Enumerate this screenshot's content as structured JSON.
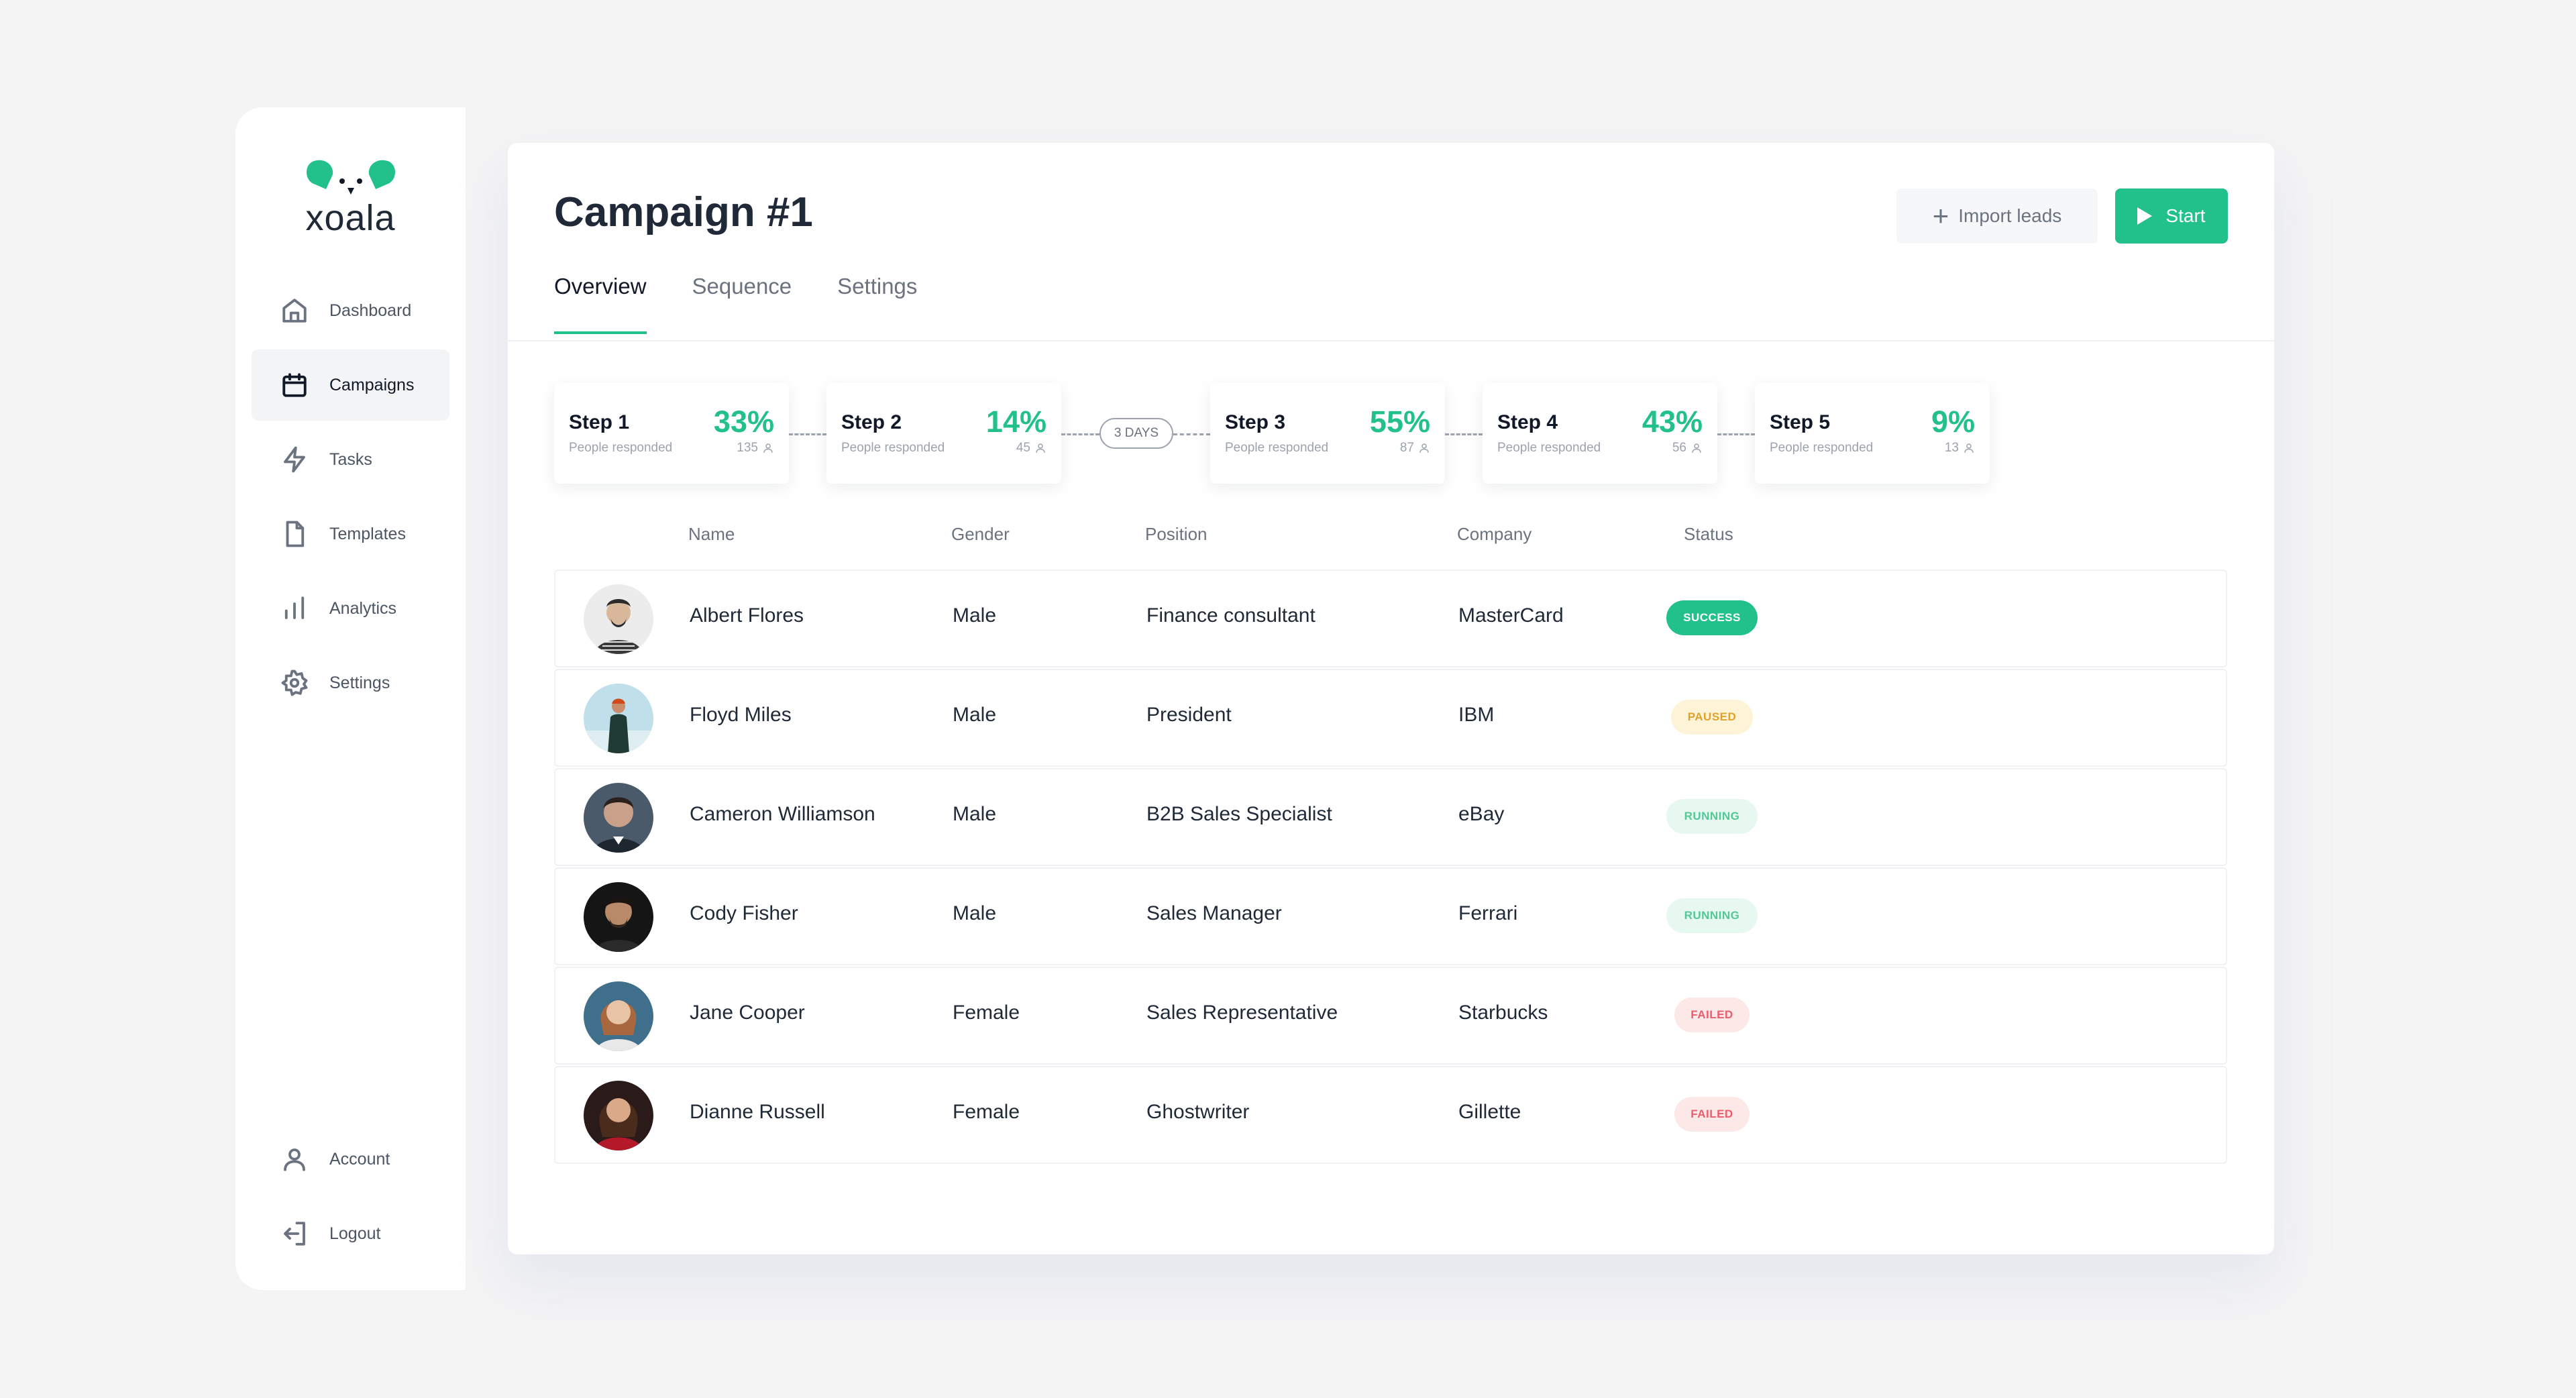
{
  "brand": {
    "name": "xoala",
    "accent": "#22c08a"
  },
  "sidebar": {
    "items": [
      {
        "label": "Dashboard",
        "icon": "home-icon",
        "active": false
      },
      {
        "label": "Campaigns",
        "icon": "calendar-icon",
        "active": true
      },
      {
        "label": "Tasks",
        "icon": "lightning-icon",
        "active": false
      },
      {
        "label": "Templates",
        "icon": "document-icon",
        "active": false
      },
      {
        "label": "Analytics",
        "icon": "bar-chart-icon",
        "active": false
      },
      {
        "label": "Settings",
        "icon": "gear-icon",
        "active": false
      }
    ],
    "bottom": [
      {
        "label": "Account",
        "icon": "user-icon"
      },
      {
        "label": "Logout",
        "icon": "logout-icon"
      }
    ]
  },
  "header": {
    "title": "Campaign #1",
    "import_label": "Import leads",
    "start_label": "Start"
  },
  "tabs": [
    {
      "label": "Overview",
      "active": true
    },
    {
      "label": "Sequence",
      "active": false
    },
    {
      "label": "Settings",
      "active": false
    }
  ],
  "steps": [
    {
      "title": "Step 1",
      "subtitle": "People responded",
      "percent": "33%",
      "count": "135"
    },
    {
      "title": "Step 2",
      "subtitle": "People responded",
      "percent": "14%",
      "count": "45"
    },
    {
      "title": "Step 3",
      "subtitle": "People responded",
      "percent": "55%",
      "count": "87"
    },
    {
      "title": "Step 4",
      "subtitle": "People responded",
      "percent": "43%",
      "count": "56"
    },
    {
      "title": "Step 5",
      "subtitle": "People responded",
      "percent": "9%",
      "count": "13"
    }
  ],
  "delay_label": "3 DAYS",
  "table": {
    "columns": [
      "Name",
      "Gender",
      "Position",
      "Company",
      "Status"
    ],
    "rows": [
      {
        "name": "Albert Flores",
        "gender": "Male",
        "position": "Finance consultant",
        "company": "MasterCard",
        "status": "SUCCESS"
      },
      {
        "name": "Floyd Miles",
        "gender": "Male",
        "position": "President",
        "company": "IBM",
        "status": "PAUSED"
      },
      {
        "name": "Cameron Williamson",
        "gender": "Male",
        "position": "B2B Sales Specialist",
        "company": "eBay",
        "status": "RUNNING"
      },
      {
        "name": "Cody Fisher",
        "gender": "Male",
        "position": "Sales Manager",
        "company": "Ferrari",
        "status": "RUNNING"
      },
      {
        "name": "Jane Cooper",
        "gender": "Female",
        "position": "Sales Representative",
        "company": "Starbucks",
        "status": "FAILED"
      },
      {
        "name": "Dianne Russell",
        "gender": "Female",
        "position": "Ghostwriter",
        "company": "Gillette",
        "status": "FAILED"
      }
    ]
  },
  "status_colors": {
    "SUCCESS": "#22c08a",
    "PAUSED": "#e0a22a",
    "RUNNING": "#52c896",
    "FAILED": "#ec5c6a"
  }
}
